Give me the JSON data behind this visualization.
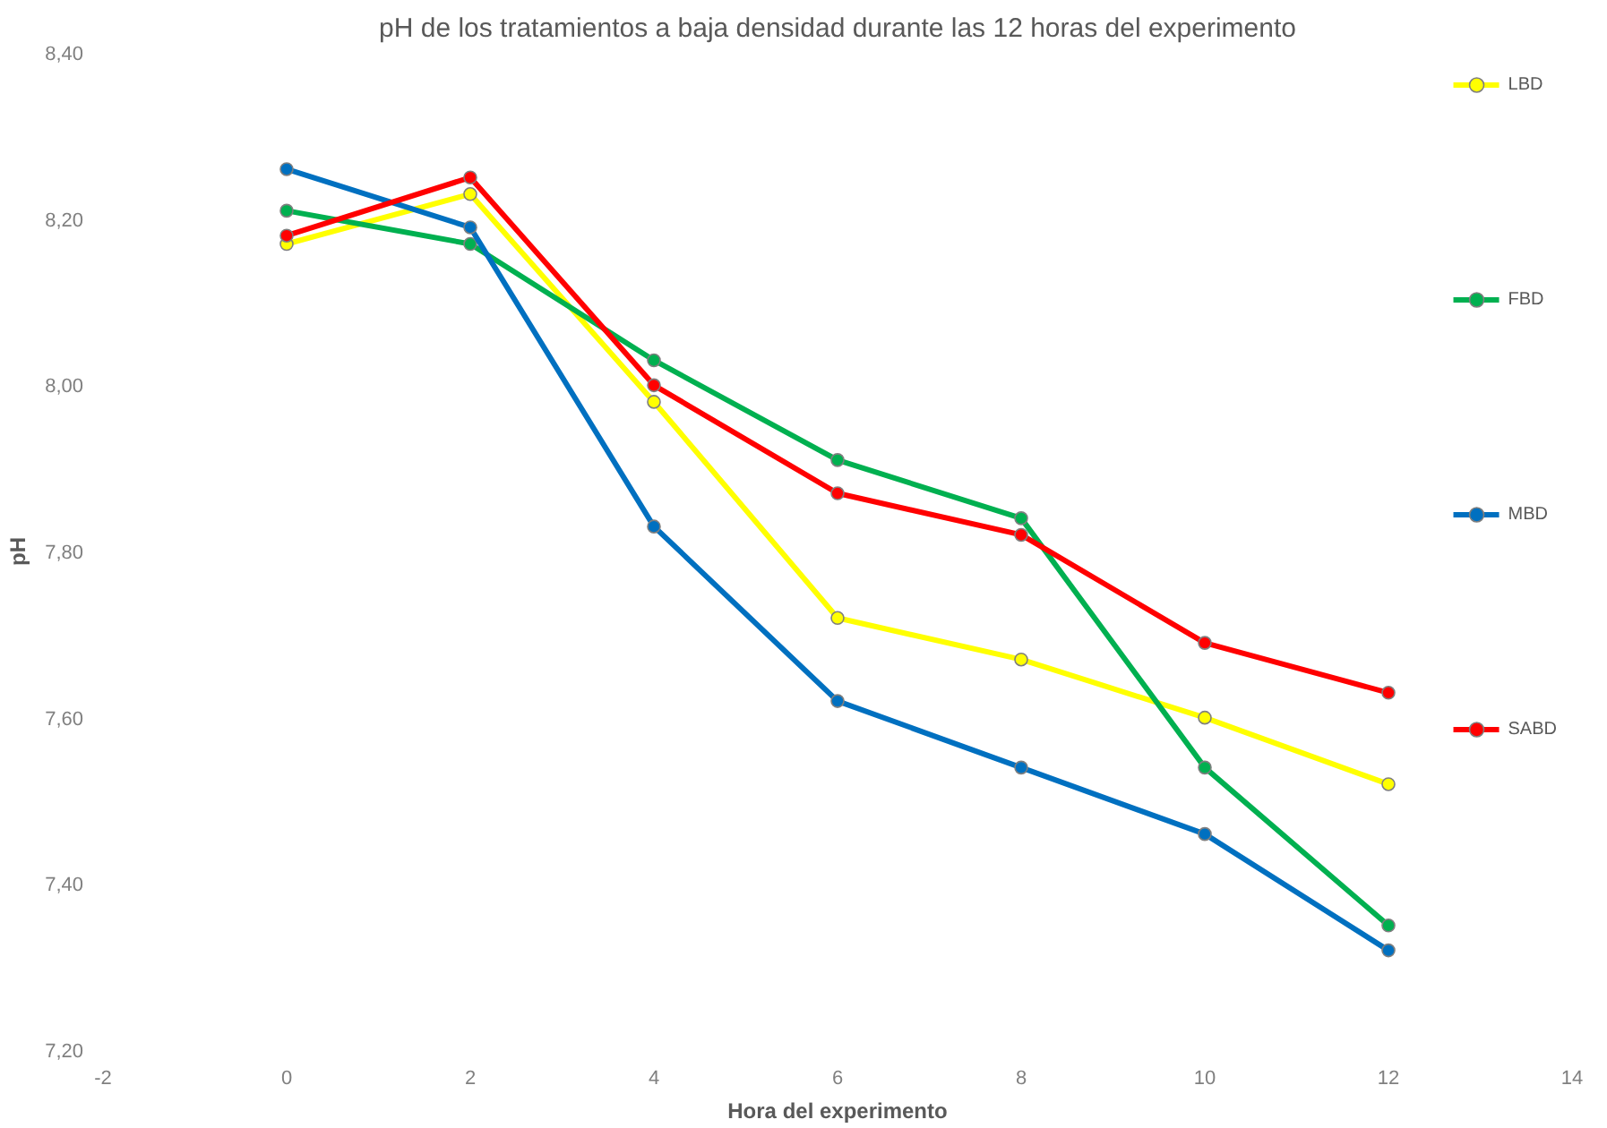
{
  "chart_data": {
    "type": "line",
    "title": "pH de los tratamientos a baja densidad durante las 12 horas del experimento",
    "xlabel": "Hora del experimento",
    "ylabel": "pH",
    "x": [
      0,
      2,
      4,
      6,
      8,
      10,
      12
    ],
    "series": [
      {
        "name": "LBD",
        "color": "#ffff00",
        "values": [
          8.17,
          8.23,
          7.98,
          7.72,
          7.67,
          7.6,
          7.52
        ]
      },
      {
        "name": "FBD",
        "color": "#00b050",
        "values": [
          8.21,
          8.17,
          8.03,
          7.91,
          7.84,
          7.54,
          7.35
        ]
      },
      {
        "name": "MBD",
        "color": "#0070c0",
        "values": [
          8.26,
          8.19,
          7.83,
          7.62,
          7.54,
          7.46,
          7.32
        ]
      },
      {
        "name": "SABD",
        "color": "#ff0000",
        "values": [
          8.18,
          8.25,
          8.0,
          7.87,
          7.82,
          7.69,
          7.63
        ]
      }
    ],
    "xlim": [
      -2,
      14
    ],
    "xticks": [
      -2,
      0,
      2,
      4,
      6,
      8,
      10,
      12,
      14
    ],
    "ylim": [
      7.2,
      8.4
    ],
    "yticks": [
      {
        "value": 7.2,
        "label": "7,20"
      },
      {
        "value": 7.4,
        "label": "7,40"
      },
      {
        "value": 7.6,
        "label": "7,60"
      },
      {
        "value": 7.8,
        "label": "7,80"
      },
      {
        "value": 8.0,
        "label": "8,00"
      },
      {
        "value": 8.2,
        "label": "8,20"
      },
      {
        "value": 8.4,
        "label": "8,40"
      }
    ],
    "grid": false,
    "legend": "right",
    "marker": "circle",
    "line_style": "solid"
  }
}
